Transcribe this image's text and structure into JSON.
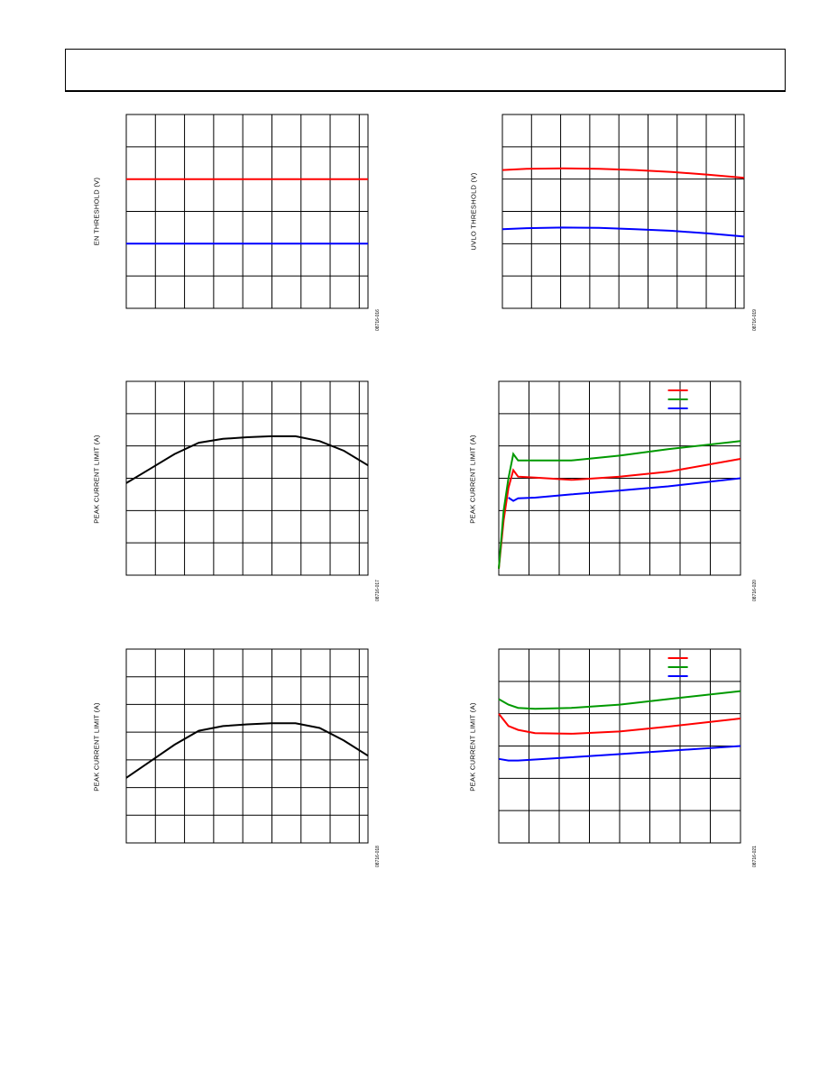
{
  "chart_data": [
    {
      "id": "c1",
      "type": "line",
      "ylabel": "EN THRESHOLD (V)",
      "figure_id": "08716-016",
      "x": [
        0,
        1
      ],
      "series": [
        {
          "color": "#ff0000",
          "values": [
            2.0,
            2.0
          ]
        },
        {
          "color": "#0000ff",
          "values": [
            4.0,
            4.0
          ]
        }
      ],
      "ylim": [
        6,
        0
      ],
      "grid": {
        "cols": 8.3,
        "rows": 6
      }
    },
    {
      "id": "c2",
      "type": "line",
      "ylabel": "UVLO THRESHOLD (V)",
      "figure_id": "08716-019",
      "x": [
        0,
        0.1,
        0.25,
        0.4,
        0.55,
        0.7,
        0.85,
        1.0
      ],
      "series": [
        {
          "color": "#ff0000",
          "values": [
            1.72,
            1.68,
            1.67,
            1.68,
            1.72,
            1.78,
            1.86,
            1.96
          ]
        },
        {
          "color": "#0000ff",
          "values": [
            3.55,
            3.52,
            3.5,
            3.51,
            3.55,
            3.6,
            3.68,
            3.78
          ]
        }
      ],
      "ylim": [
        6,
        0
      ],
      "grid": {
        "cols": 8.3,
        "rows": 6
      }
    },
    {
      "id": "c3",
      "type": "line",
      "ylabel": "PEAK CURRENT LIMIT (A)",
      "figure_id": "08716-017",
      "x": [
        0,
        0.1,
        0.2,
        0.3,
        0.4,
        0.5,
        0.6,
        0.7,
        0.8,
        0.9,
        1.0
      ],
      "series": [
        {
          "color": "#000000",
          "values": [
            3.15,
            2.7,
            2.25,
            1.9,
            1.78,
            1.73,
            1.7,
            1.7,
            1.85,
            2.15,
            2.6
          ]
        }
      ],
      "ylim": [
        6,
        0
      ],
      "grid": {
        "cols": 8.3,
        "rows": 6
      }
    },
    {
      "id": "c4",
      "type": "line",
      "ylabel": "PEAK CURRENT LIMIT (A)",
      "figure_id": "08716-020",
      "x": [
        0,
        0.02,
        0.04,
        0.06,
        0.08,
        0.15,
        0.3,
        0.5,
        0.7,
        1.0
      ],
      "series": [
        {
          "color": "#ff0000",
          "values": [
            5.8,
            4.3,
            3.3,
            2.75,
            2.95,
            2.98,
            3.05,
            2.95,
            2.8,
            2.4
          ]
        },
        {
          "color": "#009900",
          "values": [
            5.8,
            4.0,
            3.0,
            2.25,
            2.45,
            2.45,
            2.45,
            2.3,
            2.1,
            1.85
          ]
        },
        {
          "color": "#0000ff",
          "values": [
            null,
            null,
            3.6,
            3.7,
            3.62,
            3.6,
            3.5,
            3.38,
            3.25,
            3.0
          ]
        }
      ],
      "legend": {
        "placement": "top-right",
        "entries": [
          "",
          "",
          ""
        ]
      },
      "ylim": [
        6,
        0
      ],
      "grid": {
        "cols": 8,
        "rows": 6
      }
    },
    {
      "id": "c5",
      "type": "line",
      "ylabel": "PEAK CURRENT LIMIT (A)",
      "figure_id": "08716-018",
      "x": [
        0,
        0.1,
        0.2,
        0.3,
        0.4,
        0.5,
        0.6,
        0.7,
        0.8,
        0.9,
        1.0
      ],
      "series": [
        {
          "color": "#000000",
          "values": [
            4.65,
            4.05,
            3.45,
            2.95,
            2.78,
            2.72,
            2.68,
            2.68,
            2.85,
            3.3,
            3.85
          ]
        }
      ],
      "ylim": [
        7,
        0
      ],
      "grid": {
        "cols": 8.3,
        "rows": 7
      }
    },
    {
      "id": "c6",
      "type": "line",
      "ylabel": "PEAK CURRENT LIMIT (A)",
      "figure_id": "08716-021",
      "x": [
        0,
        0.04,
        0.08,
        0.15,
        0.3,
        0.5,
        0.7,
        1.0
      ],
      "series": [
        {
          "color": "#ff0000",
          "values": [
            2.0,
            2.38,
            2.5,
            2.6,
            2.62,
            2.55,
            2.4,
            2.15
          ]
        },
        {
          "color": "#009900",
          "values": [
            1.55,
            1.72,
            1.82,
            1.85,
            1.82,
            1.72,
            1.55,
            1.3
          ]
        },
        {
          "color": "#0000ff",
          "values": [
            3.4,
            3.45,
            3.45,
            3.42,
            3.35,
            3.25,
            3.15,
            3.0
          ]
        }
      ],
      "legend": {
        "placement": "top-right",
        "entries": [
          "",
          "",
          ""
        ]
      },
      "ylim": [
        6,
        0
      ],
      "grid": {
        "cols": 8,
        "rows": 6
      }
    }
  ]
}
